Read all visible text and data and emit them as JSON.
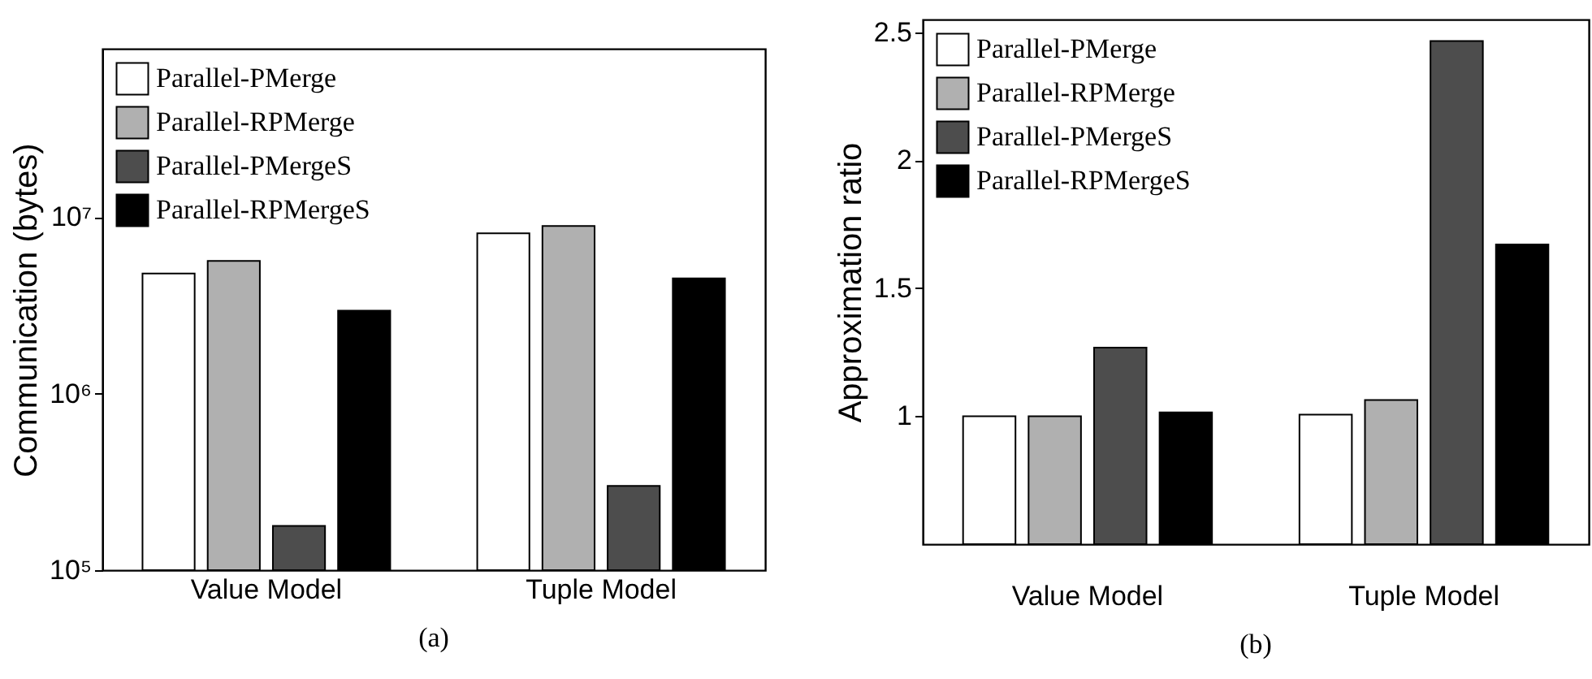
{
  "chart_data": [
    {
      "type": "bar",
      "ylabel": "Communication (bytes)",
      "categories": [
        "Value Model",
        "Tuple Model"
      ],
      "log": true,
      "ylim": [
        100000,
        90000000
      ],
      "yticks": [
        {
          "value": 100000,
          "label": "10⁵"
        },
        {
          "value": 1000000,
          "label": "10⁶"
        },
        {
          "value": 10000000,
          "label": "10⁷"
        }
      ],
      "legend": "top left",
      "annotations": [
        "(a)"
      ],
      "series": [
        {
          "name": "Parallel-PMerge",
          "color": "#ffffff",
          "values": [
            4800000,
            8100000
          ]
        },
        {
          "name": "Parallel-RPMerge",
          "color": "#b0b0b0",
          "values": [
            5650000,
            8900000
          ]
        },
        {
          "name": "Parallel-PMergeS",
          "color": "#4d4d4d",
          "values": [
            178000,
            300000
          ]
        },
        {
          "name": "Parallel-RPMergeS",
          "color": "#000000",
          "values": [
            2950000,
            4500000
          ]
        }
      ]
    },
    {
      "type": "bar",
      "ylabel": "Approximation ratio",
      "categories": [
        "Value Model",
        "Tuple Model"
      ],
      "ylim": [
        0.5,
        2.55
      ],
      "yticks": [
        1,
        1.5,
        2,
        2.5
      ],
      "legend": "top left",
      "annotations": [
        "(b)"
      ],
      "series": [
        {
          "name": "Parallel-PMerge",
          "color": "#ffffff",
          "values": [
            1.0,
            1.006
          ]
        },
        {
          "name": "Parallel-RPMerge",
          "color": "#b0b0b0",
          "values": [
            1.0,
            1.063
          ]
        },
        {
          "name": "Parallel-PMergeS",
          "color": "#4d4d4d",
          "values": [
            1.268,
            2.466
          ]
        },
        {
          "name": "Parallel-RPMergeS",
          "color": "#000000",
          "values": [
            1.015,
            1.671
          ]
        }
      ]
    }
  ]
}
